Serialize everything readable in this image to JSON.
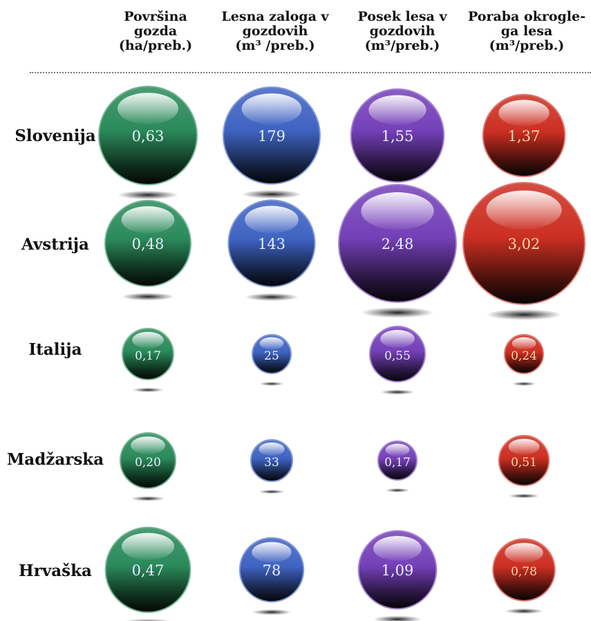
{
  "chart_data": {
    "type": "bubble-grid",
    "columns": [
      {
        "lines": [
          "Površina",
          "gozda",
          "(ha/preb.)"
        ],
        "color": "#2a8a5a"
      },
      {
        "lines": [
          "Lesna zaloga v",
          "gozdovih",
          "(m³ /preb.)"
        ],
        "color": "#3f63c2"
      },
      {
        "lines": [
          "Posek lesa  v",
          "gozdovih",
          "(m³/preb.)"
        ],
        "color": "#7440b8"
      },
      {
        "lines": [
          "Poraba okrogle-",
          "ga lesa",
          "(m³/preb.)"
        ],
        "color": "#cc2f22"
      }
    ],
    "rows": [
      {
        "label": "Slovenija",
        "values": [
          0.63,
          179,
          1.55,
          1.37
        ],
        "display": [
          "0,63",
          "179",
          "1,55",
          "1,37"
        ]
      },
      {
        "label": "Avstrija",
        "values": [
          0.48,
          143,
          2.48,
          3.02
        ],
        "display": [
          "0,48",
          "143",
          "2,48",
          "3,02"
        ]
      },
      {
        "label": "Italija",
        "values": [
          0.17,
          25,
          0.55,
          0.24
        ],
        "display": [
          "0,17",
          "25",
          "0,55",
          "0,24"
        ]
      },
      {
        "label": "Madžarska",
        "values": [
          0.2,
          33,
          0.17,
          0.51
        ],
        "display": [
          "0,20",
          "33",
          "0,17",
          "0,51"
        ]
      },
      {
        "label": "Hrvaška",
        "values": [
          0.47,
          78,
          1.09,
          0.78
        ],
        "display": [
          "0,47",
          "78",
          "1,09",
          "0,78"
        ]
      }
    ]
  }
}
